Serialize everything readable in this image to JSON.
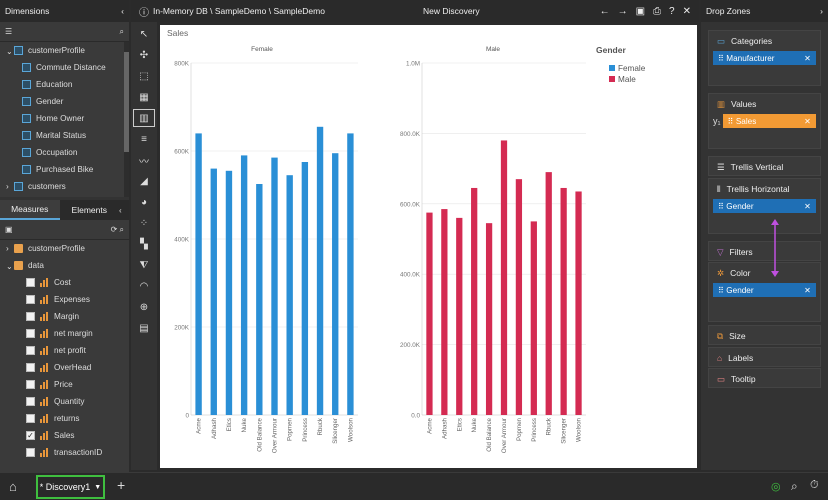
{
  "dimensions": {
    "title": "Dimensions",
    "root": "customerProfile",
    "items": [
      "Commute Distance",
      "Education",
      "Gender",
      "Home Owner",
      "Marital Status",
      "Occupation",
      "Purchased Bike"
    ],
    "next": "customers"
  },
  "measures_tabs": [
    "Measures",
    "Elements"
  ],
  "measures": {
    "folder1": "customerProfile",
    "folder2": "data",
    "items": [
      {
        "label": "Cost",
        "checked": false
      },
      {
        "label": "Expenses",
        "checked": false
      },
      {
        "label": "Margin",
        "checked": false
      },
      {
        "label": "net margin",
        "checked": false
      },
      {
        "label": "net profit",
        "checked": false
      },
      {
        "label": "OverHead",
        "checked": false
      },
      {
        "label": "Price",
        "checked": false
      },
      {
        "label": "Quantity",
        "checked": false
      },
      {
        "label": "returns",
        "checked": false
      },
      {
        "label": "Sales",
        "checked": true
      },
      {
        "label": "transactionID",
        "checked": false
      }
    ]
  },
  "topbar": {
    "path": "In-Memory DB \\ SampleDemo \\ SampleDemo",
    "title": "New Discovery"
  },
  "drop_zones": {
    "title": "Drop Zones",
    "categories": "Categories",
    "categories_chip": "Manufacturer",
    "values": "Values",
    "values_prefix": "y₁",
    "values_chip": "Sales",
    "trellis_vertical": "Trellis Vertical",
    "trellis_horizontal": "Trellis Horizontal",
    "trellis_chip": "Gender",
    "filters": "Filters",
    "color": "Color",
    "color_chip": "Gender",
    "size": "Size",
    "labels": "Labels",
    "tooltip": "Tooltip"
  },
  "bottom": {
    "tab": "* Discovery1"
  },
  "colors": {
    "female": "#2a8fd6",
    "male": "#d42b52",
    "accent": "#5aa6d8",
    "orange": "#f29a34",
    "tab_border": "#3fbf3f"
  },
  "chart_data": [
    {
      "type": "bar",
      "title": "Sales",
      "panel": "Female",
      "categories": [
        "Acme",
        "Adhash",
        "Etics",
        "Nuke",
        "Old Balance",
        "Over Armour",
        "Popmen",
        "Princess",
        "Rbuck",
        "Slicenger",
        "Woolson"
      ],
      "ylim": [
        0,
        800000
      ],
      "yticks": [
        "0",
        "200K",
        "400K",
        "600K",
        "800K"
      ],
      "series": [
        {
          "name": "Female",
          "values": [
            640000,
            560000,
            555000,
            590000,
            525000,
            585000,
            545000,
            575000,
            655000,
            595000,
            640000
          ]
        }
      ]
    },
    {
      "type": "bar",
      "title": "Sales",
      "panel": "Male",
      "categories": [
        "Acme",
        "Adhash",
        "Etics",
        "Nuke",
        "Old Balance",
        "Over Armour",
        "Popmen",
        "Princess",
        "Rbuck",
        "Slicenger",
        "Woolson"
      ],
      "ylim": [
        0,
        1000000
      ],
      "yticks": [
        "0.0",
        "200.0K",
        "400.0K",
        "600.0K",
        "800.0K",
        "1.0M"
      ],
      "series": [
        {
          "name": "Male",
          "values": [
            575000,
            585000,
            560000,
            645000,
            545000,
            780000,
            670000,
            550000,
            690000,
            645000,
            635000
          ]
        }
      ]
    }
  ],
  "legend": {
    "title": "Gender",
    "items": [
      "Female",
      "Male"
    ]
  }
}
